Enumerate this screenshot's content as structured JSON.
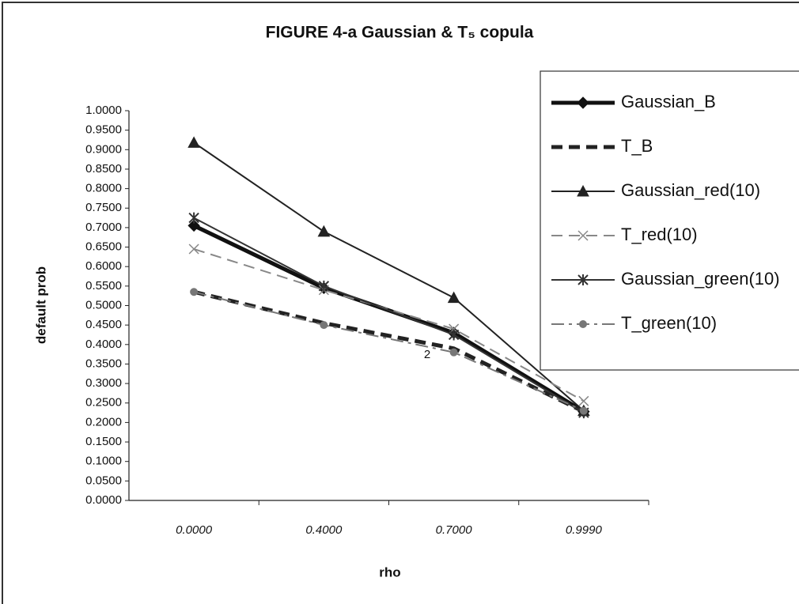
{
  "chart_data": {
    "type": "line",
    "title": "FIGURE 4-a Gaussian & T₅ copula",
    "xlabel": "rho",
    "ylabel": "default prob",
    "annotation": "2",
    "categories": [
      "0.0000",
      "0.4000",
      "0.7000",
      "0.9990"
    ],
    "ylim": [
      0,
      1
    ],
    "yticks": [
      {
        "value": 0,
        "label": "0.0000"
      },
      {
        "value": 0.05,
        "label": "0.0500"
      },
      {
        "value": 0.1,
        "label": "0.1000"
      },
      {
        "value": 0.15,
        "label": "0.1500"
      },
      {
        "value": 0.2,
        "label": "0.2000"
      },
      {
        "value": 0.25,
        "label": "0.2500"
      },
      {
        "value": 0.3,
        "label": "0.3000"
      },
      {
        "value": 0.35,
        "label": "0.3500"
      },
      {
        "value": 0.4,
        "label": "0.4000"
      },
      {
        "value": 0.45,
        "label": "0.4500"
      },
      {
        "value": 0.5,
        "label": "0.5000"
      },
      {
        "value": 0.55,
        "label": "0.5500"
      },
      {
        "value": 0.6,
        "label": "0.6000"
      },
      {
        "value": 0.65,
        "label": "0.6500"
      },
      {
        "value": 0.7,
        "label": "0.7000"
      },
      {
        "value": 0.75,
        "label": "0.7500"
      },
      {
        "value": 0.8,
        "label": "0.8000"
      },
      {
        "value": 0.85,
        "label": "0.8500"
      },
      {
        "value": 0.9,
        "label": "0.9000"
      },
      {
        "value": 0.95,
        "label": "0.9500"
      },
      {
        "value": 1,
        "label": "1.0000"
      }
    ],
    "grid": false,
    "legend": "right",
    "series": [
      {
        "name": "Gaussian_B",
        "color": "#111111",
        "dash": "solid",
        "weight": "bold",
        "marker": "diamond",
        "values": [
          0.705,
          0.545,
          0.43,
          0.228
        ]
      },
      {
        "name": "T_B",
        "color": "#222222",
        "dash": "dashed",
        "weight": "bold",
        "marker": "none",
        "values": [
          0.535,
          0.455,
          0.39,
          0.228
        ]
      },
      {
        "name": "Gaussian_red(10)",
        "color": "#222222",
        "dash": "solid",
        "weight": "normal",
        "marker": "triangle",
        "values": [
          0.918,
          0.69,
          0.52,
          0.23
        ]
      },
      {
        "name": "T_red(10)",
        "color": "#888888",
        "dash": "dashed",
        "weight": "normal",
        "marker": "x",
        "values": [
          0.645,
          0.54,
          0.44,
          0.255
        ]
      },
      {
        "name": "Gaussian_green(10)",
        "color": "#333333",
        "dash": "solid",
        "weight": "normal",
        "marker": "star",
        "values": [
          0.725,
          0.55,
          0.425,
          0.225
        ]
      },
      {
        "name": "T_green(10)",
        "color": "#777777",
        "dash": "dashdot",
        "weight": "normal",
        "marker": "circle",
        "values": [
          0.535,
          0.45,
          0.38,
          0.23
        ]
      }
    ]
  }
}
